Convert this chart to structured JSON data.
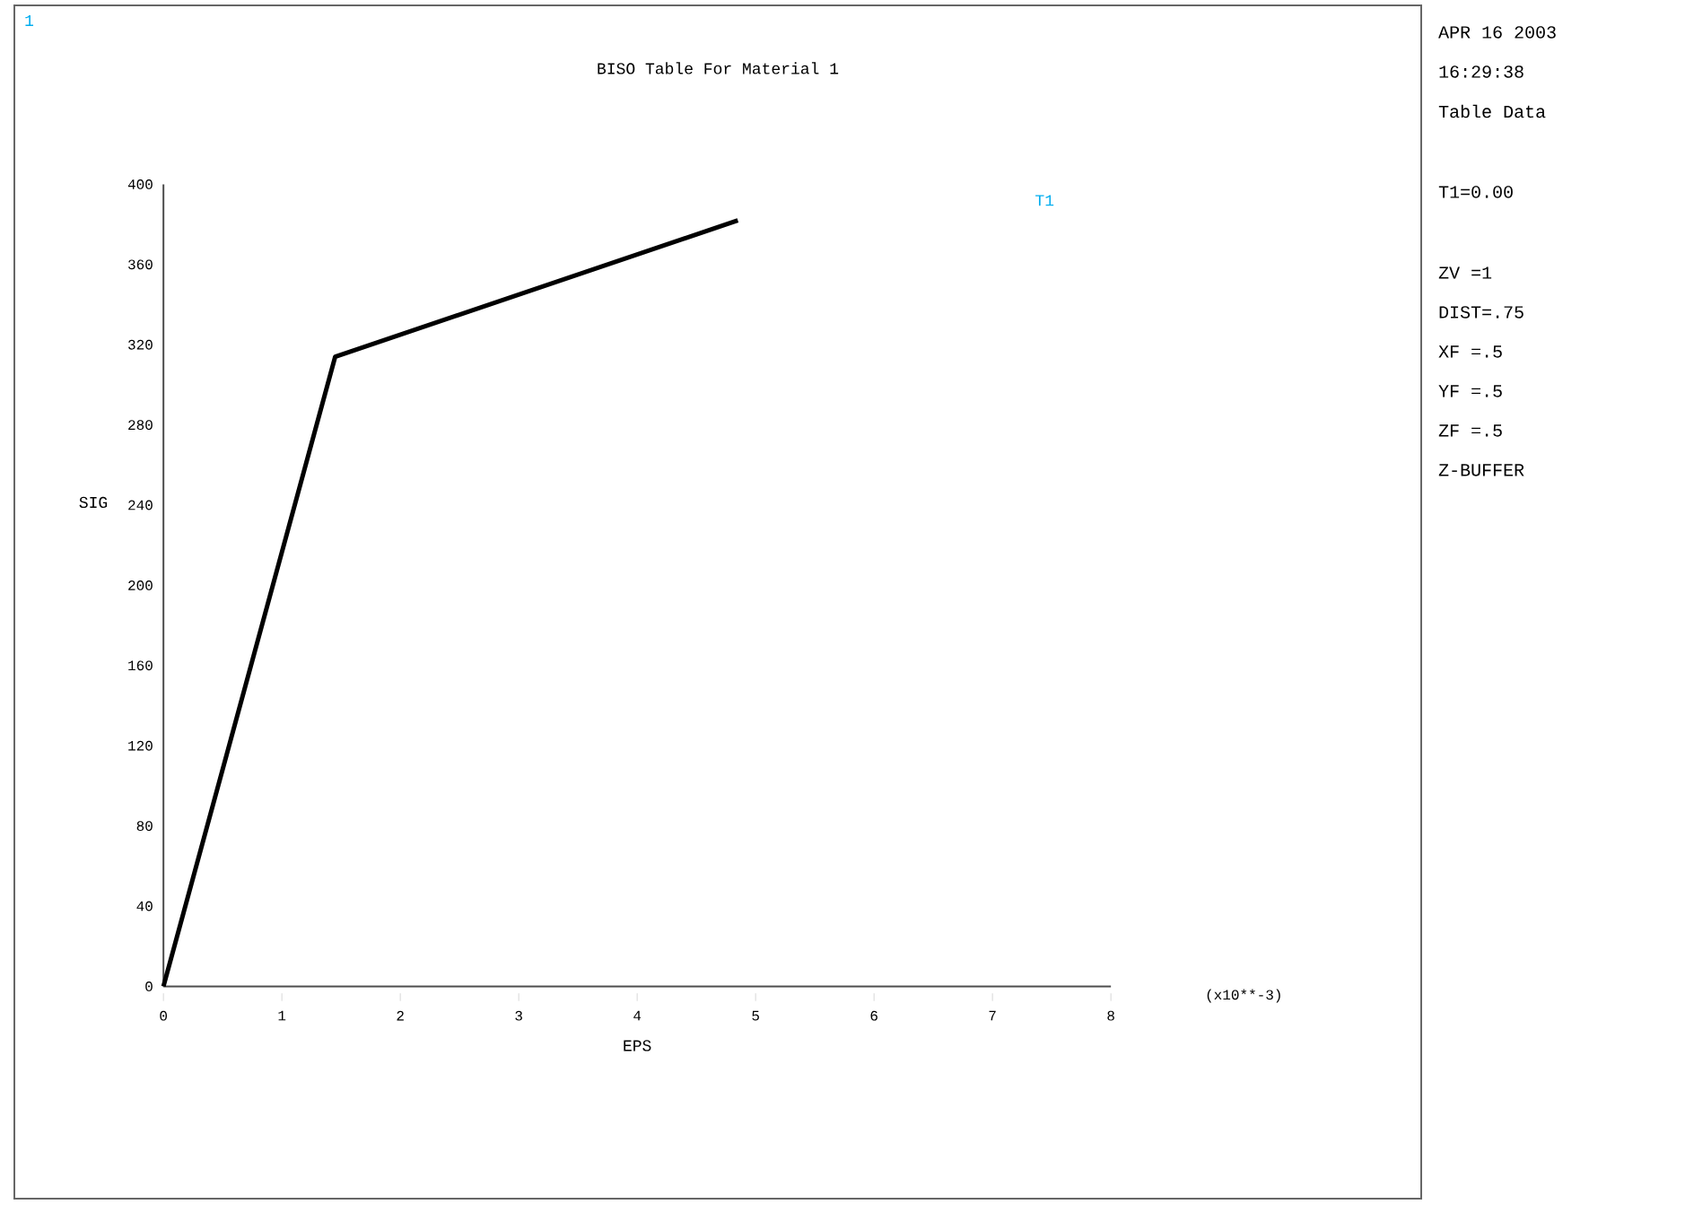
{
  "chart_data": {
    "type": "line",
    "title": "BISO Table For Material     1",
    "xlabel": "EPS",
    "ylabel": "SIG",
    "x": [
      0,
      1.45,
      4.85
    ],
    "series": [
      {
        "name": "T1",
        "color": "#000000",
        "values": [
          0,
          314,
          382
        ]
      }
    ],
    "xlim": [
      0,
      8
    ],
    "xticks": [
      0,
      1,
      2,
      3,
      4,
      5,
      6,
      7,
      8
    ],
    "ylim": [
      0,
      400
    ],
    "yticks": [
      0,
      40,
      80,
      120,
      160,
      200,
      240,
      280,
      320,
      360,
      400
    ],
    "grid": false,
    "legend": "top right",
    "marker": "none",
    "line_style": "solid",
    "annotations": [
      "(x10**-3)",
      "1",
      "APR 16 2003",
      "16:29:38",
      "Table Data",
      "T1=0.00",
      "ZV =1",
      "DIST=.75",
      "XF =.5",
      "YF =.5",
      "ZF =.5",
      "Z-BUFFER"
    ]
  }
}
